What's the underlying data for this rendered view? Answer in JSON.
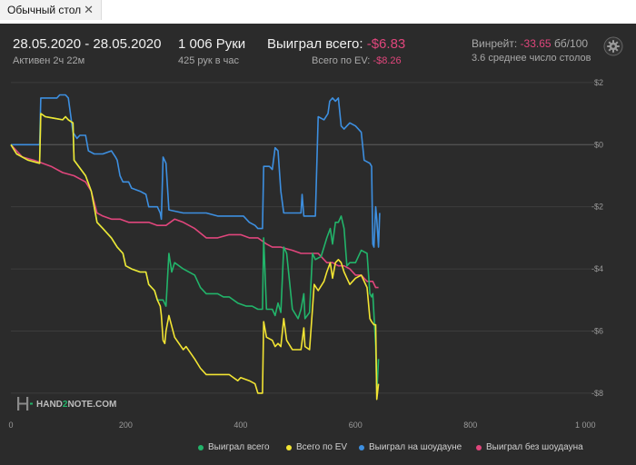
{
  "tab": {
    "label": "Обычный стол",
    "close": "✕"
  },
  "header": {
    "date_range": "28.05.2020 - 28.05.2020",
    "active": "Активен 2ч 22м",
    "hands": "1 006 Руки",
    "hands_per_hour": "425 рук в час",
    "won_label": "Выиграл всего:",
    "won_value": "-$6.83",
    "ev_label": "Всего по EV:",
    "ev_value": "-$8.26",
    "winrate_label": "Винрейт:",
    "winrate_value": "-33.65",
    "winrate_unit": "бб/100",
    "tables": "3.6 среднее число столов"
  },
  "watermark": {
    "prefix": "HAND",
    "mid": "2",
    "suffix": "NOTE.COM"
  },
  "colors": {
    "won": "#22b46a",
    "ev": "#f2e433",
    "showdown": "#3d8fe0",
    "nonshowdown": "#e0467c",
    "negative": "#e0467c"
  },
  "chart_data": {
    "type": "line",
    "x_ticks": [
      0,
      200,
      400,
      600,
      800,
      1000
    ],
    "x_tick_labels": [
      "0",
      "200",
      "400",
      "600",
      "800",
      "1 000"
    ],
    "y_ticks": [
      2,
      0,
      -2,
      -4,
      -6,
      -8
    ],
    "y_tick_labels": [
      "$2",
      "$0",
      "-$2",
      "-$4",
      "-$6",
      "-$8"
    ],
    "xlim": [
      0,
      1006
    ],
    "ylim": [
      -8.5,
      2.2
    ],
    "grid": true,
    "legend_position": "bottom-right",
    "series": [
      {
        "name": "Выиграл всего",
        "color": "#22b46a",
        "points": [
          [
            0,
            0
          ],
          [
            10,
            -0.3
          ],
          [
            30,
            -0.5
          ],
          [
            50,
            -0.6
          ],
          [
            52,
            1.0
          ],
          [
            60,
            0.9
          ],
          [
            75,
            0.85
          ],
          [
            90,
            0.8
          ],
          [
            95,
            0.9
          ],
          [
            100,
            0.8
          ],
          [
            108,
            0.7
          ],
          [
            110,
            -0.5
          ],
          [
            130,
            -1.0
          ],
          [
            140,
            -1.5
          ],
          [
            145,
            -2.0
          ],
          [
            150,
            -2.5
          ],
          [
            160,
            -2.7
          ],
          [
            175,
            -3.0
          ],
          [
            185,
            -3.3
          ],
          [
            195,
            -3.5
          ],
          [
            200,
            -3.9
          ],
          [
            210,
            -4.0
          ],
          [
            225,
            -4.1
          ],
          [
            235,
            -4.1
          ],
          [
            240,
            -4.5
          ],
          [
            250,
            -4.7
          ],
          [
            255,
            -5.0
          ],
          [
            265,
            -5.0
          ],
          [
            270,
            -5.2
          ],
          [
            275,
            -3.5
          ],
          [
            280,
            -4.1
          ],
          [
            285,
            -3.8
          ],
          [
            300,
            -4.0
          ],
          [
            320,
            -4.2
          ],
          [
            330,
            -4.6
          ],
          [
            340,
            -4.8
          ],
          [
            360,
            -4.8
          ],
          [
            370,
            -4.9
          ],
          [
            380,
            -4.9
          ],
          [
            395,
            -5.1
          ],
          [
            410,
            -5.2
          ],
          [
            420,
            -5.2
          ],
          [
            430,
            -5.3
          ],
          [
            438,
            -5.3
          ],
          [
            440,
            -3.0
          ],
          [
            445,
            -5.3
          ],
          [
            455,
            -5.3
          ],
          [
            460,
            -5.5
          ],
          [
            465,
            -5.1
          ],
          [
            470,
            -5.4
          ],
          [
            475,
            -3.3
          ],
          [
            480,
            -3.5
          ],
          [
            490,
            -5.3
          ],
          [
            500,
            -5.6
          ],
          [
            505,
            -5.3
          ],
          [
            510,
            -4.8
          ],
          [
            512,
            -5.6
          ],
          [
            520,
            -5.4
          ],
          [
            525,
            -3.5
          ],
          [
            530,
            -3.7
          ],
          [
            540,
            -3.6
          ],
          [
            545,
            -3.3
          ],
          [
            550,
            -3.0
          ],
          [
            556,
            -2.7
          ],
          [
            560,
            -3.2
          ],
          [
            565,
            -2.5
          ],
          [
            570,
            -2.5
          ],
          [
            575,
            -2.3
          ],
          [
            580,
            -2.7
          ],
          [
            585,
            -3.9
          ],
          [
            590,
            -3.8
          ],
          [
            600,
            -3.8
          ],
          [
            610,
            -3.4
          ],
          [
            620,
            -3.5
          ],
          [
            625,
            -4.8
          ],
          [
            628,
            -4.9
          ],
          [
            630,
            -4.8
          ],
          [
            633,
            -5.8
          ],
          [
            635,
            -6.5
          ],
          [
            637,
            -8.0
          ],
          [
            640,
            -6.9
          ]
        ]
      },
      {
        "name": "Всего по EV",
        "color": "#f2e433",
        "points": [
          [
            0,
            0
          ],
          [
            10,
            -0.3
          ],
          [
            30,
            -0.5
          ],
          [
            50,
            -0.6
          ],
          [
            52,
            1.0
          ],
          [
            60,
            0.9
          ],
          [
            75,
            0.85
          ],
          [
            90,
            0.8
          ],
          [
            95,
            0.9
          ],
          [
            100,
            0.8
          ],
          [
            108,
            0.7
          ],
          [
            110,
            -0.5
          ],
          [
            130,
            -1.0
          ],
          [
            140,
            -1.5
          ],
          [
            145,
            -2.0
          ],
          [
            150,
            -2.5
          ],
          [
            160,
            -2.7
          ],
          [
            175,
            -3.0
          ],
          [
            185,
            -3.3
          ],
          [
            195,
            -3.5
          ],
          [
            200,
            -3.9
          ],
          [
            210,
            -4.0
          ],
          [
            225,
            -4.1
          ],
          [
            235,
            -4.1
          ],
          [
            240,
            -4.5
          ],
          [
            250,
            -4.7
          ],
          [
            255,
            -5.0
          ],
          [
            260,
            -5.2
          ],
          [
            262,
            -5.5
          ],
          [
            265,
            -6.3
          ],
          [
            268,
            -6.4
          ],
          [
            270,
            -6.0
          ],
          [
            275,
            -5.5
          ],
          [
            285,
            -6.2
          ],
          [
            300,
            -6.6
          ],
          [
            305,
            -6.5
          ],
          [
            320,
            -6.9
          ],
          [
            330,
            -7.2
          ],
          [
            340,
            -7.4
          ],
          [
            360,
            -7.4
          ],
          [
            380,
            -7.4
          ],
          [
            395,
            -7.6
          ],
          [
            400,
            -7.5
          ],
          [
            415,
            -7.6
          ],
          [
            425,
            -7.7
          ],
          [
            430,
            -8.0
          ],
          [
            438,
            -8.0
          ],
          [
            440,
            -5.7
          ],
          [
            445,
            -6.2
          ],
          [
            455,
            -6.3
          ],
          [
            460,
            -6.5
          ],
          [
            465,
            -6.4
          ],
          [
            470,
            -6.5
          ],
          [
            475,
            -5.6
          ],
          [
            480,
            -6.3
          ],
          [
            490,
            -6.6
          ],
          [
            500,
            -6.6
          ],
          [
            505,
            -6.6
          ],
          [
            510,
            -5.9
          ],
          [
            512,
            -6.5
          ],
          [
            520,
            -6.6
          ],
          [
            525,
            -5.3
          ],
          [
            528,
            -4.5
          ],
          [
            535,
            -4.7
          ],
          [
            545,
            -4.4
          ],
          [
            550,
            -4.1
          ],
          [
            556,
            -3.8
          ],
          [
            560,
            -4.3
          ],
          [
            565,
            -3.8
          ],
          [
            570,
            -3.7
          ],
          [
            575,
            -3.8
          ],
          [
            580,
            -4.1
          ],
          [
            585,
            -4.3
          ],
          [
            590,
            -4.5
          ],
          [
            600,
            -4.3
          ],
          [
            610,
            -4.2
          ],
          [
            620,
            -4.6
          ],
          [
            625,
            -5.6
          ],
          [
            628,
            -5.7
          ],
          [
            632,
            -5.8
          ],
          [
            635,
            -5.8
          ],
          [
            637,
            -8.2
          ],
          [
            640,
            -7.7
          ]
        ]
      },
      {
        "name": "Выиграл на шоудауне",
        "color": "#3d8fe0",
        "points": [
          [
            0,
            0
          ],
          [
            30,
            0
          ],
          [
            50,
            0
          ],
          [
            52,
            1.5
          ],
          [
            60,
            1.5
          ],
          [
            75,
            1.5
          ],
          [
            80,
            1.5
          ],
          [
            85,
            1.6
          ],
          [
            95,
            1.6
          ],
          [
            100,
            1.5
          ],
          [
            108,
            0.4
          ],
          [
            115,
            0.2
          ],
          [
            120,
            0.3
          ],
          [
            130,
            0.3
          ],
          [
            135,
            -0.2
          ],
          [
            145,
            -0.3
          ],
          [
            160,
            -0.3
          ],
          [
            175,
            -0.2
          ],
          [
            182,
            -0.4
          ],
          [
            185,
            -0.5
          ],
          [
            190,
            -1.0
          ],
          [
            195,
            -1.2
          ],
          [
            205,
            -1.2
          ],
          [
            210,
            -1.4
          ],
          [
            225,
            -1.5
          ],
          [
            235,
            -1.6
          ],
          [
            240,
            -2.0
          ],
          [
            255,
            -2.0
          ],
          [
            260,
            -2.2
          ],
          [
            262,
            -2.4
          ],
          [
            265,
            -0.4
          ],
          [
            270,
            -0.6
          ],
          [
            275,
            -2.1
          ],
          [
            300,
            -2.2
          ],
          [
            320,
            -2.2
          ],
          [
            340,
            -2.2
          ],
          [
            360,
            -2.3
          ],
          [
            380,
            -2.3
          ],
          [
            395,
            -2.3
          ],
          [
            405,
            -2.3
          ],
          [
            415,
            -2.5
          ],
          [
            425,
            -2.6
          ],
          [
            430,
            -2.7
          ],
          [
            438,
            -2.7
          ],
          [
            440,
            -0.7
          ],
          [
            450,
            -0.7
          ],
          [
            455,
            -0.8
          ],
          [
            460,
            -0.1
          ],
          [
            465,
            -0.2
          ],
          [
            470,
            -1.5
          ],
          [
            475,
            -2.2
          ],
          [
            485,
            -2.2
          ],
          [
            500,
            -2.2
          ],
          [
            505,
            -2.2
          ],
          [
            507,
            -1.6
          ],
          [
            510,
            -2.3
          ],
          [
            520,
            -2.3
          ],
          [
            530,
            -2.3
          ],
          [
            535,
            0.9
          ],
          [
            545,
            0.8
          ],
          [
            552,
            1.0
          ],
          [
            555,
            1.4
          ],
          [
            560,
            1.5
          ],
          [
            565,
            1.4
          ],
          [
            570,
            1.5
          ],
          [
            575,
            0.6
          ],
          [
            580,
            0.5
          ],
          [
            585,
            0.6
          ],
          [
            590,
            0.7
          ],
          [
            600,
            0.6
          ],
          [
            610,
            0.4
          ],
          [
            615,
            -0.5
          ],
          [
            625,
            -0.6
          ],
          [
            628,
            -0.7
          ],
          [
            630,
            -3.2
          ],
          [
            632,
            -3.3
          ],
          [
            635,
            -2.0
          ],
          [
            637,
            -2.4
          ],
          [
            640,
            -3.3
          ],
          [
            642,
            -2.2
          ]
        ]
      },
      {
        "name": "Выиграл без шоудауна",
        "color": "#e0467c",
        "points": [
          [
            0,
            0
          ],
          [
            20,
            -0.4
          ],
          [
            40,
            -0.5
          ],
          [
            55,
            -0.6
          ],
          [
            70,
            -0.7
          ],
          [
            90,
            -0.9
          ],
          [
            110,
            -1.0
          ],
          [
            130,
            -1.2
          ],
          [
            140,
            -1.5
          ],
          [
            150,
            -2.2
          ],
          [
            160,
            -2.3
          ],
          [
            175,
            -2.4
          ],
          [
            190,
            -2.4
          ],
          [
            205,
            -2.5
          ],
          [
            225,
            -2.5
          ],
          [
            240,
            -2.5
          ],
          [
            255,
            -2.6
          ],
          [
            270,
            -2.6
          ],
          [
            285,
            -2.4
          ],
          [
            300,
            -2.5
          ],
          [
            320,
            -2.7
          ],
          [
            340,
            -3.0
          ],
          [
            360,
            -3.0
          ],
          [
            380,
            -2.9
          ],
          [
            400,
            -2.9
          ],
          [
            415,
            -3.0
          ],
          [
            430,
            -3.0
          ],
          [
            445,
            -3.2
          ],
          [
            455,
            -3.3
          ],
          [
            470,
            -3.3
          ],
          [
            490,
            -3.4
          ],
          [
            505,
            -3.5
          ],
          [
            520,
            -3.5
          ],
          [
            535,
            -3.5
          ],
          [
            550,
            -3.8
          ],
          [
            560,
            -3.8
          ],
          [
            570,
            -3.9
          ],
          [
            580,
            -3.9
          ],
          [
            590,
            -4.0
          ],
          [
            600,
            -4.2
          ],
          [
            610,
            -4.2
          ],
          [
            620,
            -4.4
          ],
          [
            630,
            -4.4
          ],
          [
            635,
            -4.6
          ],
          [
            640,
            -4.6
          ]
        ]
      }
    ]
  }
}
